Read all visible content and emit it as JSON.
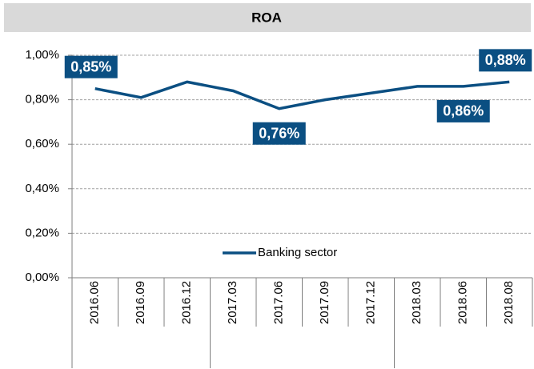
{
  "chart_data": {
    "type": "line",
    "title": "ROA",
    "categories": [
      "2016.06",
      "2016.09",
      "2016.12",
      "2017.03",
      "2017.06",
      "2017.09",
      "2017.12",
      "2018.03",
      "2018.06",
      "2018.08"
    ],
    "series": [
      {
        "name": "Banking sector",
        "color": "#0b4f82",
        "values": [
          0.85,
          0.81,
          0.88,
          0.84,
          0.76,
          0.8,
          0.83,
          0.86,
          0.86,
          0.88
        ],
        "value_labels": [
          "0,85%",
          null,
          null,
          null,
          "0,76%",
          null,
          null,
          null,
          "0,86%",
          "0,88%"
        ]
      }
    ],
    "ylim": [
      0,
      1
    ],
    "yticks": [
      {
        "value": 0,
        "label": "0,00%"
      },
      {
        "value": 0.2,
        "label": "0,20%"
      },
      {
        "value": 0.4,
        "label": "0,40%"
      },
      {
        "value": 0.6,
        "label": "0,60%"
      },
      {
        "value": 0.8,
        "label": "0,80%"
      },
      {
        "value": 1,
        "label": "1,00%"
      }
    ],
    "grid": true
  }
}
